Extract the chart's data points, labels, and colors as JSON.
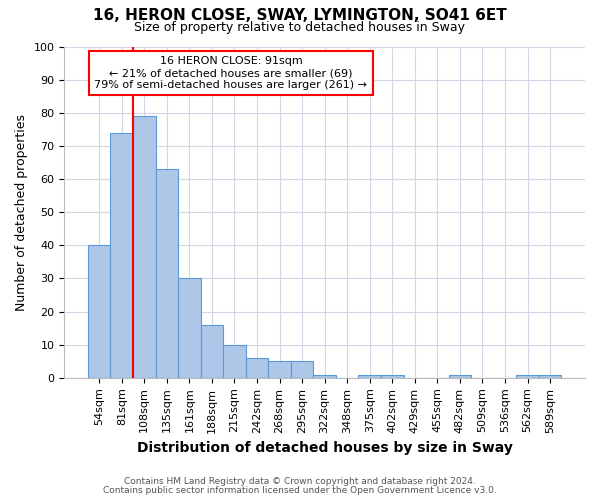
{
  "title": "16, HERON CLOSE, SWAY, LYMINGTON, SO41 6ET",
  "subtitle": "Size of property relative to detached houses in Sway",
  "xlabel": "Distribution of detached houses by size in Sway",
  "ylabel": "Number of detached properties",
  "footnote1": "Contains HM Land Registry data © Crown copyright and database right 2024.",
  "footnote2": "Contains public sector information licensed under the Open Government Licence v3.0.",
  "categories": [
    "54sqm",
    "81sqm",
    "108sqm",
    "135sqm",
    "161sqm",
    "188sqm",
    "215sqm",
    "242sqm",
    "268sqm",
    "295sqm",
    "322sqm",
    "348sqm",
    "375sqm",
    "402sqm",
    "429sqm",
    "455sqm",
    "482sqm",
    "509sqm",
    "536sqm",
    "562sqm",
    "589sqm"
  ],
  "values": [
    40,
    74,
    79,
    63,
    30,
    16,
    10,
    6,
    5,
    5,
    1,
    0,
    1,
    1,
    0,
    0,
    1,
    0,
    0,
    1,
    1
  ],
  "bar_color": "#aec6e8",
  "bar_edge_color": "#5b9bd5",
  "vline_color": "red",
  "annotation_text1": "16 HERON CLOSE: 91sqm",
  "annotation_text2": "← 21% of detached houses are smaller (69)",
  "annotation_text3": "79% of semi-detached houses are larger (261) →",
  "ylim": [
    0,
    100
  ],
  "yticks": [
    0,
    10,
    20,
    30,
    40,
    50,
    60,
    70,
    80,
    90,
    100
  ],
  "bg_color": "white",
  "grid_color": "#d0d8e8",
  "title_fontsize": 11,
  "subtitle_fontsize": 9,
  "xlabel_fontsize": 10,
  "ylabel_fontsize": 9,
  "tick_fontsize": 8,
  "footnote_fontsize": 6.5
}
